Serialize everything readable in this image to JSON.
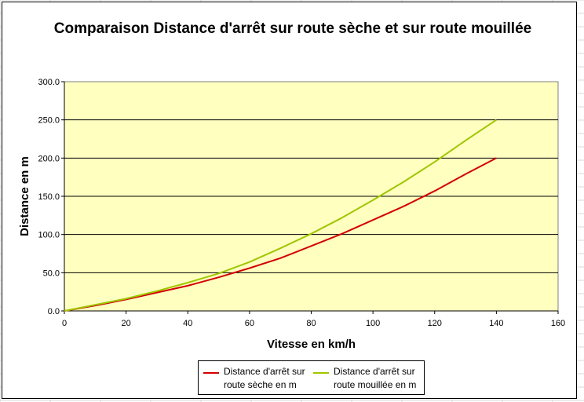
{
  "chart_data": {
    "type": "line",
    "title": "Comparaison Distance d'arrêt sur route sèche et sur route mouillée",
    "xlabel": "Vitesse en km/h",
    "ylabel": "Distance en m",
    "xlim": [
      0,
      160
    ],
    "ylim": [
      0,
      300
    ],
    "x_ticks": [
      "0",
      "20",
      "40",
      "60",
      "80",
      "100",
      "120",
      "140",
      "160"
    ],
    "y_ticks": [
      "0.0",
      "50.0",
      "100.0",
      "150.0",
      "200.0",
      "250.0",
      "300.0"
    ],
    "grid": "horizontal",
    "legend_position": "bottom",
    "plot_background": "#FFFFC0",
    "series": [
      {
        "name": "Distance d'arrêt sur route sèche en m",
        "color": "#D40000",
        "x": [
          0,
          10,
          20,
          30,
          40,
          50,
          60,
          70,
          80,
          90,
          100,
          110,
          120,
          130,
          140
        ],
        "y": [
          0,
          7,
          15,
          24,
          33,
          44,
          56,
          69,
          85,
          101,
          119,
          137,
          157,
          179,
          200
        ]
      },
      {
        "name": "Distance d'arrêt sur route mouillée en m",
        "color": "#9FC600",
        "x": [
          0,
          10,
          20,
          30,
          40,
          50,
          60,
          70,
          80,
          90,
          100,
          110,
          120,
          130,
          140
        ],
        "y": [
          0,
          8,
          16,
          26,
          37,
          49,
          64,
          82,
          101,
          122,
          145,
          169,
          195,
          223,
          250
        ]
      }
    ]
  }
}
